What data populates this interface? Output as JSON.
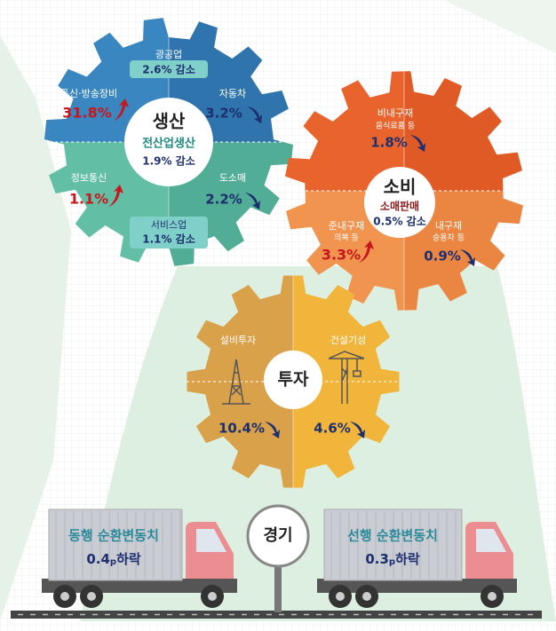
{
  "production": {
    "title": "생산",
    "summary_label": "전산업생산",
    "summary": "1.9% 감소",
    "items": [
      {
        "label": "광공업",
        "value": "2.6% 감소"
      },
      {
        "label": "통신·방송장비",
        "value": "31.8%"
      },
      {
        "label": "자동차",
        "value": "3.2%"
      },
      {
        "label": "정보통신",
        "value": "1.1%"
      },
      {
        "label": "도소매",
        "value": "2.2%"
      },
      {
        "label": "서비스업",
        "value": "1.1% 감소"
      }
    ]
  },
  "consumption": {
    "title": "소비",
    "summary_label": "소매판매",
    "summary": "0.5% 감소",
    "items": [
      {
        "label": "비내구재",
        "sublabel": "음식료품 등",
        "value": "1.8%"
      },
      {
        "label": "준내구재",
        "sublabel": "의복 등",
        "value": "3.3%"
      },
      {
        "label": "내구재",
        "sublabel": "승용차 등",
        "value": "0.9%"
      }
    ]
  },
  "investment": {
    "title": "투자",
    "items": [
      {
        "label": "설비투자",
        "value": "10.4%"
      },
      {
        "label": "건설기성",
        "value": "4.6%"
      }
    ]
  },
  "economy": {
    "title": "경기",
    "coincident": {
      "label": "동행 순환변동치",
      "value": "0.4",
      "unit": "p",
      "change": "하락"
    },
    "leading": {
      "label": "선행 순환변동치",
      "value": "0.3",
      "unit": "p",
      "change": "하락"
    }
  }
}
